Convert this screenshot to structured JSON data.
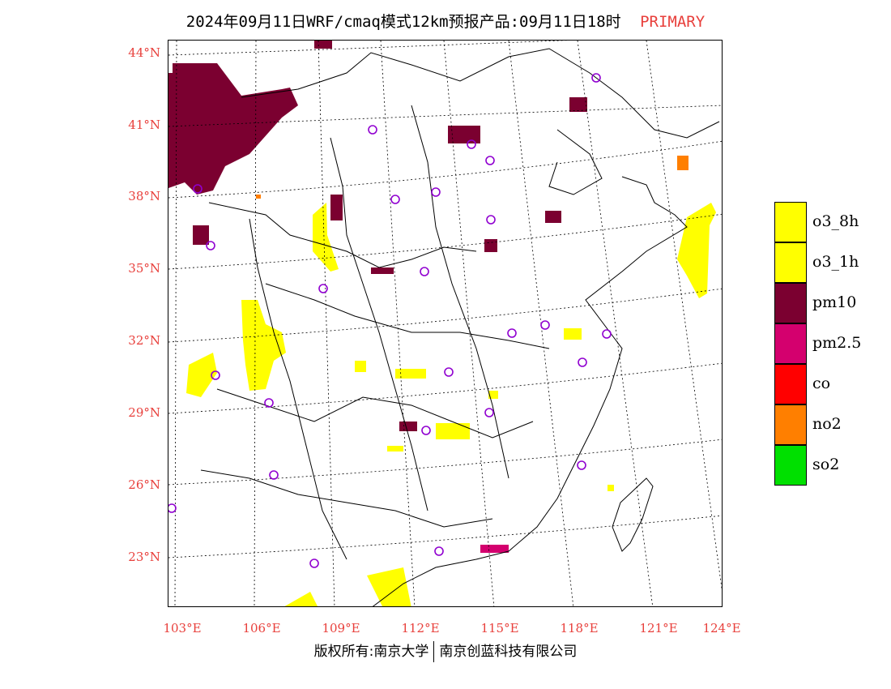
{
  "title": {
    "text": "2024年09月11日WRF/cmaq模式12km预报产品:09月11日18时",
    "tag": "PRIMARY",
    "tag_color": "#e8403c"
  },
  "map": {
    "lat_labels": [
      "44°N",
      "41°N",
      "38°N",
      "35°N",
      "32°N",
      "29°N",
      "26°N",
      "23°N"
    ],
    "lon_labels": [
      "103°E",
      "106°E",
      "109°E",
      "112°E",
      "115°E",
      "118°E",
      "121°E",
      "124°E"
    ],
    "label_color": "#e8403c"
  },
  "legend": [
    {
      "label": "o3_8h",
      "color": "#ffff00"
    },
    {
      "label": "o3_1h",
      "color": "#ffff00"
    },
    {
      "label": "pm10",
      "color": "#7b0030"
    },
    {
      "label": "pm2.5",
      "color": "#d4006e"
    },
    {
      "label": "co",
      "color": "#ff0000"
    },
    {
      "label": "no2",
      "color": "#ff7f00"
    },
    {
      "label": "so2",
      "color": "#00e000"
    }
  ],
  "footer": {
    "left": "版权所有:南京大学",
    "right": "南京创蓝科技有限公司"
  }
}
